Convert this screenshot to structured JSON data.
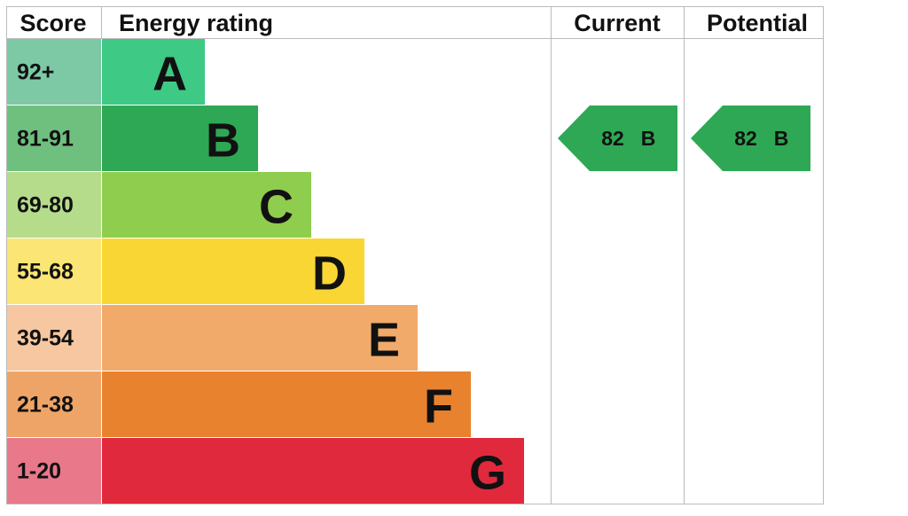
{
  "header": {
    "score": "Score",
    "rating": "Energy rating",
    "current": "Current",
    "potential": "Potential"
  },
  "bands": [
    {
      "range": "92+",
      "letter": "A",
      "color": "#3ec985",
      "light": "#7dc9a6"
    },
    {
      "range": "81-91",
      "letter": "B",
      "color": "#2ea854",
      "light": "#6fbf7e"
    },
    {
      "range": "69-80",
      "letter": "C",
      "color": "#8ecd4d",
      "light": "#b5dc8b"
    },
    {
      "range": "55-68",
      "letter": "D",
      "color": "#f9d633",
      "light": "#fbe574"
    },
    {
      "range": "39-54",
      "letter": "E",
      "color": "#f2aa6b",
      "light": "#f6c7a0"
    },
    {
      "range": "21-38",
      "letter": "F",
      "color": "#e8822f",
      "light": "#eea466"
    },
    {
      "range": "1-20",
      "letter": "G",
      "color": "#e0293c",
      "light": "#e9788a"
    }
  ],
  "current": {
    "score": 82,
    "letter": "B"
  },
  "potential": {
    "score": 82,
    "letter": "B"
  }
}
